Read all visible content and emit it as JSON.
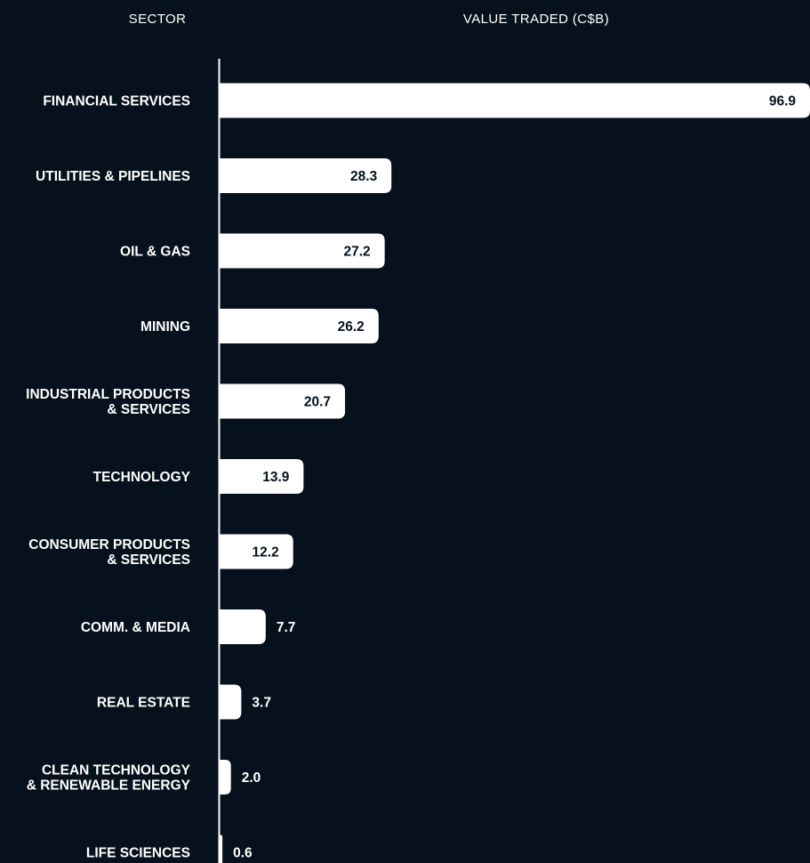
{
  "chart_data": {
    "type": "bar",
    "orientation": "horizontal",
    "category_header": "SECTOR",
    "value_header": "VALUE TRADED (C$B)",
    "categories": [
      [
        "FINANCIAL SERVICES"
      ],
      [
        "UTILITIES & PIPELINES"
      ],
      [
        "OIL & GAS"
      ],
      [
        "MINING"
      ],
      [
        "INDUSTRIAL PRODUCTS",
        "& SERVICES"
      ],
      [
        "TECHNOLOGY"
      ],
      [
        "CONSUMER PRODUCTS",
        "& SERVICES"
      ],
      [
        "COMM. & MEDIA"
      ],
      [
        "REAL ESTATE"
      ],
      [
        "CLEAN TECHNOLOGY",
        "& RENEWABLE ENERGY"
      ],
      [
        "LIFE SCIENCES"
      ]
    ],
    "values": [
      96.9,
      28.3,
      27.2,
      26.2,
      20.7,
      13.9,
      12.2,
      7.7,
      3.7,
      2.0,
      0.6
    ],
    "value_labels": [
      "96.9",
      "28.3",
      "27.2",
      "26.2",
      "20.7",
      "13.9",
      "12.2",
      "7.7",
      "3.7",
      "2.0",
      "0.6"
    ],
    "xlim": [
      0,
      96.9
    ],
    "grid": false,
    "legend": "none",
    "colors": {
      "background": "#06111d",
      "bar": "#ffffff",
      "text": "#ffffff",
      "value_text_inside": "#06111d"
    }
  }
}
